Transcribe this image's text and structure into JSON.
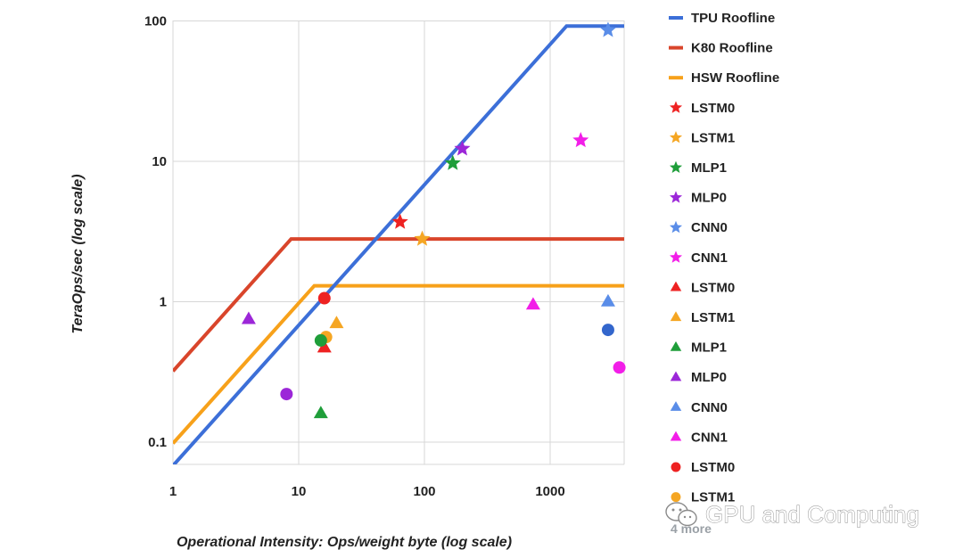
{
  "chart_data": {
    "type": "scatter",
    "title": "",
    "xlabel": "Operational Intensity: Ops/weight byte (log scale)",
    "ylabel": "TeraOps/sec (log scale)",
    "xscale": "log",
    "yscale": "log",
    "xlim": [
      1,
      4000
    ],
    "ylim": [
      0.06,
      100
    ],
    "grid": true,
    "legend_position": "right",
    "x_ticks": [
      1,
      10,
      100,
      1000
    ],
    "x_tick_labels": [
      "1",
      "10",
      "100",
      "1000"
    ],
    "y_ticks": [
      0.1,
      1,
      10,
      100
    ],
    "y_tick_labels": [
      "0.1",
      "1",
      "10",
      "100"
    ],
    "rooflines": [
      {
        "name": "TPU Roofline",
        "color": "#3c6fd8",
        "points": [
          [
            1,
            0.068
          ],
          [
            1350,
            92
          ],
          [
            4000,
            92
          ]
        ]
      },
      {
        "name": "K80 Roofline",
        "color": "#d9452b",
        "points": [
          [
            1,
            0.32
          ],
          [
            8.7,
            2.8
          ],
          [
            4000,
            2.8
          ]
        ]
      },
      {
        "name": "HSW Roofline",
        "color": "#f7a11a",
        "points": [
          [
            1,
            0.098
          ],
          [
            13.3,
            1.3
          ],
          [
            4000,
            1.3
          ]
        ]
      }
    ],
    "series": [
      {
        "name": "LSTM0",
        "marker": "star",
        "color": "#ee2222",
        "x": 64,
        "y": 3.7
      },
      {
        "name": "LSTM1",
        "marker": "star",
        "color": "#f5a623",
        "x": 96,
        "y": 2.8
      },
      {
        "name": "MLP1",
        "marker": "star",
        "color": "#1f9e3a",
        "x": 168,
        "y": 9.7
      },
      {
        "name": "MLP0",
        "marker": "star",
        "color": "#9c27d8",
        "x": 200,
        "y": 12.3
      },
      {
        "name": "CNN0",
        "marker": "star",
        "color": "#5a8de8",
        "x": 2888,
        "y": 86
      },
      {
        "name": "CNN1",
        "marker": "star",
        "color": "#f21ee8",
        "x": 1750,
        "y": 14.1
      },
      {
        "name": "LSTM0",
        "marker": "triangle",
        "color": "#ee2222",
        "x": 16,
        "y": 0.47
      },
      {
        "name": "LSTM1",
        "marker": "triangle",
        "color": "#f5a623",
        "x": 20,
        "y": 0.7
      },
      {
        "name": "MLP1",
        "marker": "triangle",
        "color": "#1f9e3a",
        "x": 15,
        "y": 0.16
      },
      {
        "name": "MLP0",
        "marker": "triangle",
        "color": "#9c27d8",
        "x": 4,
        "y": 0.75
      },
      {
        "name": "CNN0",
        "marker": "triangle",
        "color": "#5a8de8",
        "x": 2888,
        "y": 1.0
      },
      {
        "name": "CNN1",
        "marker": "triangle",
        "color": "#f21ee8",
        "x": 732,
        "y": 0.95
      },
      {
        "name": "LSTM0",
        "marker": "circle",
        "color": "#ee2222",
        "x": 16,
        "y": 1.06
      },
      {
        "name": "LSTM1",
        "marker": "circle",
        "color": "#f5a623",
        "x": 16.5,
        "y": 0.56
      },
      {
        "name": "MLP1",
        "marker": "circle",
        "color": "#1f9e3a",
        "x": 15,
        "y": 0.53
      },
      {
        "name": "MLP0",
        "marker": "circle",
        "color": "#9c27d8",
        "x": 8,
        "y": 0.22
      },
      {
        "name": "CNN0",
        "marker": "circle",
        "color": "#3366cc",
        "x": 2888,
        "y": 0.63
      },
      {
        "name": "CNN1",
        "marker": "circle",
        "color": "#f21ee8",
        "x": 3550,
        "y": 0.34
      }
    ],
    "legend": [
      {
        "label": "TPU Roofline",
        "symbol": "line",
        "color": "#3c6fd8"
      },
      {
        "label": "K80 Roofline",
        "symbol": "line",
        "color": "#d9452b"
      },
      {
        "label": "HSW Roofline",
        "symbol": "line",
        "color": "#f7a11a"
      },
      {
        "label": "LSTM0",
        "symbol": "star",
        "color": "#ee2222"
      },
      {
        "label": "LSTM1",
        "symbol": "star",
        "color": "#f5a623"
      },
      {
        "label": "MLP1",
        "symbol": "star",
        "color": "#1f9e3a"
      },
      {
        "label": "MLP0",
        "symbol": "star",
        "color": "#9c27d8"
      },
      {
        "label": "CNN0",
        "symbol": "star",
        "color": "#5a8de8"
      },
      {
        "label": "CNN1",
        "symbol": "star",
        "color": "#f21ee8"
      },
      {
        "label": "LSTM0",
        "symbol": "triangle",
        "color": "#ee2222"
      },
      {
        "label": "LSTM1",
        "symbol": "triangle",
        "color": "#f5a623"
      },
      {
        "label": "MLP1",
        "symbol": "triangle",
        "color": "#1f9e3a"
      },
      {
        "label": "MLP0",
        "symbol": "triangle",
        "color": "#9c27d8"
      },
      {
        "label": "CNN0",
        "symbol": "triangle",
        "color": "#5a8de8"
      },
      {
        "label": "CNN1",
        "symbol": "triangle",
        "color": "#f21ee8"
      },
      {
        "label": "LSTM0",
        "symbol": "circle",
        "color": "#ee2222"
      },
      {
        "label": "LSTM1",
        "symbol": "circle",
        "color": "#f5a623"
      }
    ],
    "legend_more": "4 more"
  },
  "watermark": {
    "text": "GPU and Computing",
    "icon": "wechat-icon"
  }
}
